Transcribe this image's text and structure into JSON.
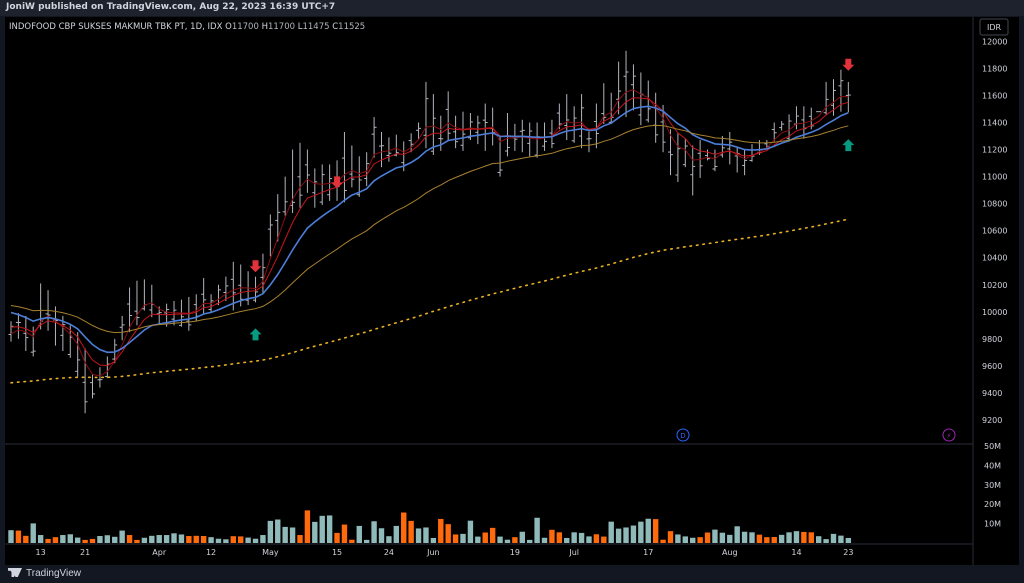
{
  "header": {
    "publish_line": "JoniW published on TradingView.com, Aug 22, 2023 16:39 UTC+7"
  },
  "footer": {
    "brand": "TradingView"
  },
  "chart_data": {
    "type": "ohlc-bar",
    "symbol_line": "INDOFOOD CBP SUKSES MAKMUR TBK PT, 1D, IDX",
    "ohlc": {
      "o_label": "O",
      "o": "11700",
      "h_label": "H",
      "h": "11700",
      "l_label": "L",
      "l": "11475",
      "c_label": "C",
      "c": "11525"
    },
    "currency": "IDR",
    "price_axis": {
      "ticks": [
        9200,
        9400,
        9600,
        9800,
        10000,
        10200,
        10400,
        10600,
        10800,
        11000,
        11200,
        11400,
        11600,
        11800,
        12000
      ],
      "ylim": [
        9030,
        12180
      ]
    },
    "volume_axis": {
      "ticks": [
        "10M",
        "20M",
        "30M",
        "40M",
        "50M"
      ],
      "values": [
        10,
        20,
        30,
        40,
        50
      ],
      "ylim": [
        0,
        51
      ]
    },
    "x_labels": [
      "13",
      "21",
      "Apr",
      "12",
      "May",
      "15",
      "24",
      "Jun",
      "19",
      "Jul",
      "17",
      "Aug",
      "14",
      "23"
    ],
    "x_label_bars": [
      4,
      10,
      20,
      27,
      35,
      44,
      51,
      57,
      68,
      76,
      86,
      97,
      106,
      113
    ],
    "highs": [
      9930,
      9990,
      9970,
      9890,
      10210,
      10160,
      10040,
      9970,
      9900,
      9850,
      9730,
      9540,
      9590,
      9670,
      9800,
      9970,
      10180,
      10230,
      10240,
      10200,
      10040,
      10060,
      10080,
      10090,
      10110,
      10130,
      10250,
      10130,
      10200,
      10260,
      10370,
      10350,
      10300,
      10260,
      10430,
      10720,
      10870,
      11000,
      11200,
      11250,
      11200,
      11060,
      11090,
      11090,
      11120,
      11330,
      11230,
      11150,
      11180,
      11440,
      11330,
      11290,
      11310,
      11260,
      11320,
      11400,
      11700,
      11610,
      11450,
      11630,
      11450,
      11480,
      11470,
      11450,
      11540,
      11510,
      11300,
      11470,
      11390,
      11420,
      11400,
      11400,
      11400,
      11420,
      11540,
      11610,
      11520,
      11610,
      11350,
      11540,
      11690,
      11620,
      11850,
      11930,
      11830,
      11770,
      11710,
      11620,
      11530,
      11350,
      11320,
      11280,
      11230,
      11270,
      11200,
      11200,
      11300,
      11330,
      11220,
      11200,
      11240,
      11270,
      11270,
      11400,
      11410,
      11460,
      11520,
      11520,
      11510,
      11480,
      11700,
      11720,
      11790,
      11700
    ],
    "lows": [
      9780,
      9800,
      9710,
      9670,
      9870,
      9860,
      9750,
      9710,
      9660,
      9520,
      9250,
      9360,
      9440,
      9510,
      9620,
      9790,
      9850,
      9900,
      10010,
      9960,
      9910,
      9890,
      9900,
      9890,
      9860,
      9930,
      9980,
      9990,
      10050,
      10080,
      10010,
      10040,
      10050,
      10070,
      10130,
      10410,
      10520,
      10710,
      10730,
      10770,
      10880,
      10770,
      10790,
      10820,
      10820,
      10810,
      10920,
      10850,
      10930,
      11140,
      11070,
      11110,
      11150,
      11040,
      11180,
      11270,
      11210,
      11160,
      11190,
      11260,
      11210,
      11190,
      11270,
      11240,
      11190,
      11230,
      11000,
      11150,
      11190,
      11180,
      11150,
      11140,
      11190,
      11210,
      11350,
      11270,
      11250,
      11210,
      11180,
      11210,
      11390,
      11390,
      11460,
      11440,
      11490,
      11380,
      11400,
      11250,
      11180,
      11010,
      10960,
      11070,
      10860,
      10990,
      11120,
      11040,
      11140,
      11090,
      11030,
      11010,
      11110,
      11160,
      11210,
      11260,
      11340,
      11270,
      11350,
      11280,
      11350,
      11480,
      11460,
      11450,
      11480,
      11475
    ],
    "volumes": [
      6.6,
      6.4,
      3.7,
      10.1,
      4.1,
      2.1,
      3.0,
      4.1,
      4.5,
      2.8,
      1.6,
      2.1,
      3.6,
      4.0,
      3.2,
      6.4,
      4.1,
      1.6,
      2.7,
      3.7,
      4.1,
      4.1,
      5.0,
      4.4,
      3.6,
      3.7,
      3.6,
      3.0,
      2.2,
      1.9,
      3.5,
      3.4,
      2.8,
      2.2,
      4.1,
      11.4,
      12.1,
      8.3,
      8.0,
      4.1,
      16.8,
      10.9,
      14.0,
      14.2,
      5.2,
      9.5,
      1.7,
      8.8,
      1.6,
      11.2,
      7.6,
      3.5,
      8.8,
      15.7,
      11.4,
      7.5,
      8.0,
      2.6,
      12.4,
      9.7,
      4.4,
      4.7,
      11.5,
      3.3,
      5.4,
      7.8,
      3.3,
      1.7,
      3.0,
      5.8,
      1.6,
      13.0,
      2.7,
      6.8,
      5.5,
      2.6,
      5.5,
      5.2,
      3.4,
      4.5,
      3.3,
      11.0,
      7.4,
      8.0,
      9.0,
      11.0,
      12.5,
      12.3,
      1.7,
      6.1,
      4.4,
      3.4,
      2.7,
      3.0,
      5.4,
      6.9,
      5.3,
      4.2,
      8.6,
      5.8,
      5.5,
      4.3,
      3.0,
      3.1,
      4.2,
      5.5,
      6.1,
      5.7,
      5.5,
      3.5,
      2.0,
      4.7,
      3.8,
      2.6
    ],
    "bar_color": {
      "ohlc": "#b2b5be",
      "volume_up": "#90b9b9",
      "volume_down": "#ff6a0d"
    },
    "series": [
      {
        "style": "ma-dark-red",
        "color": "#8b0e12"
      },
      {
        "style": "ma-red",
        "color": "#c8161c"
      },
      {
        "style": "ma-blue",
        "color": "#4c7ed9"
      },
      {
        "style": "ma-gold",
        "color": "#a7812f"
      },
      {
        "style": "ma-dotted",
        "color": "#e9b022"
      }
    ],
    "arrows": [
      {
        "kind": "sell",
        "color": "#e0333b",
        "bar": 33,
        "price": 10300
      },
      {
        "kind": "sell",
        "color": "#e0333b",
        "bar": 44,
        "price": 10920
      },
      {
        "kind": "sell",
        "color": "#e0333b",
        "bar": 128,
        "price": 11790
      },
      {
        "kind": "buy",
        "color": "#089981",
        "bar": 33,
        "price": 9870
      },
      {
        "kind": "buy",
        "color": "#089981",
        "bar": 127,
        "price": 11270
      }
    ],
    "event_markers": [
      {
        "icon": "dividend-icon",
        "symbol": "D",
        "color": "#2962ff"
      },
      {
        "icon": "earnings-icon",
        "symbol": "⚡",
        "color": "#9c27b0"
      }
    ],
    "grid": false
  }
}
